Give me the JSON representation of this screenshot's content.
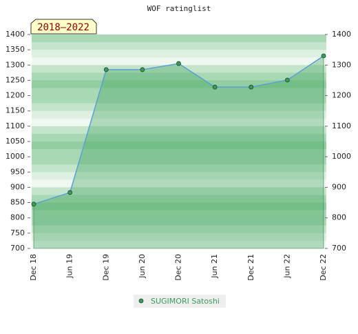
{
  "chart_data": {
    "type": "line",
    "title": "WOF ratinglist",
    "annotation": "2018–2022",
    "categories": [
      "Dec 18",
      "Jun 19",
      "Dec 19",
      "Jun 20",
      "Dec 20",
      "Jun 21",
      "Dec 21",
      "Jun 22",
      "Dec 22"
    ],
    "series": [
      {
        "name": "SUGIMORI Satoshi",
        "color": "#5aa0d8",
        "marker_color": "#3c9a5c",
        "values": [
          845,
          883,
          1285,
          1285,
          1305,
          1228,
          1228,
          1251,
          1330
        ]
      }
    ],
    "ylim": [
      700,
      1400
    ],
    "yticks": [
      700,
      750,
      800,
      850,
      900,
      950,
      1000,
      1050,
      1100,
      1150,
      1200,
      1250,
      1300,
      1350,
      1400
    ],
    "y2lim": [
      700,
      1400
    ],
    "y2ticks": [
      700,
      800,
      900,
      1000,
      1100,
      1200,
      1300,
      1400
    ]
  }
}
